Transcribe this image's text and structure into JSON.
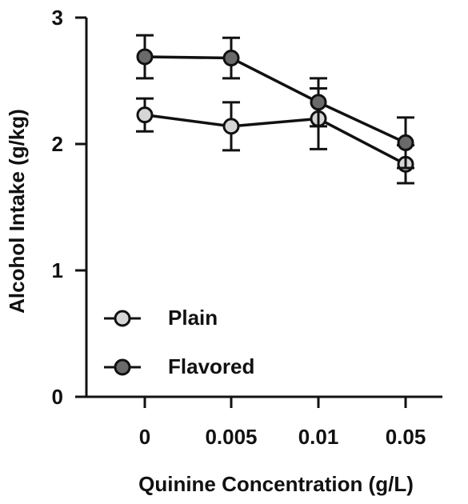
{
  "chart_data": {
    "type": "line",
    "title": "",
    "xlabel": "Quinine Concentration (g/L)",
    "ylabel": "Alcohol Intake (g/kg)",
    "categories": [
      "0",
      "0.005",
      "0.01",
      "0.05"
    ],
    "ylim": [
      0,
      3
    ],
    "yticks": [
      "0",
      "1",
      "2",
      "3"
    ],
    "grid": false,
    "legend_position": "bottom-left",
    "series": [
      {
        "name": "Plain",
        "values": [
          2.23,
          2.14,
          2.2,
          1.84
        ],
        "errors": [
          0.13,
          0.19,
          0.24,
          0.15
        ],
        "marker_fill": "#d6d6d6"
      },
      {
        "name": "Flavored",
        "values": [
          2.69,
          2.68,
          2.33,
          2.01
        ],
        "errors": [
          0.17,
          0.16,
          0.19,
          0.2
        ],
        "marker_fill": "#6a6a6a"
      }
    ]
  }
}
